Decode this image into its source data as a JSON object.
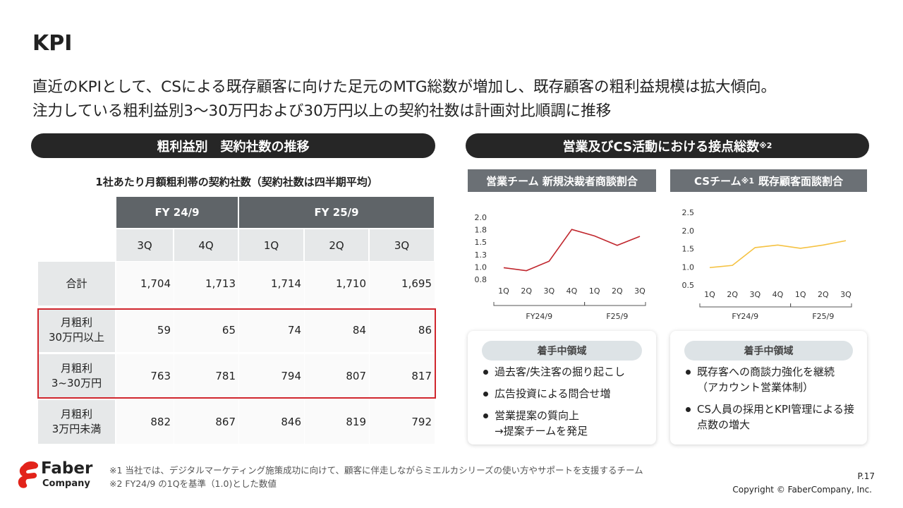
{
  "header": {
    "title": "KPI",
    "lead": [
      "直近のKPIとして、CSによる既存顧客に向けた足元のMTG総数が増加し、既存顧客の粗利益規模は拡大傾向。",
      "注力している粗利益別3〜30万円および30万円以上の契約社数は計画対比順調に推移"
    ]
  },
  "table_section": {
    "heading": "粗利益別　契約社数の推移",
    "caption": "1社あたり月額粗利帯の契約社数（契約社数は四半期平均）",
    "table": {
      "groups": [
        "FY 24/9",
        "FY 25/9"
      ],
      "columns": [
        "3Q",
        "4Q",
        "1Q",
        "2Q",
        "3Q"
      ],
      "rows": [
        {
          "label": [
            "合計"
          ],
          "cells": [
            "1,704",
            "1,713",
            "1,714",
            "1,710",
            "1,695"
          ],
          "highlight": false
        },
        {
          "label": [
            "月粗利",
            "30万円以上"
          ],
          "cells": [
            "59",
            "65",
            "74",
            "84",
            "86"
          ],
          "highlight": true
        },
        {
          "label": [
            "月粗利",
            "3~30万円"
          ],
          "cells": [
            "763",
            "781",
            "794",
            "807",
            "817"
          ],
          "highlight": true
        },
        {
          "label": [
            "月粗利",
            "3万円未満"
          ],
          "cells": [
            "882",
            "867",
            "846",
            "819",
            "792"
          ],
          "highlight": false
        }
      ]
    }
  },
  "activity_section": {
    "heading": "営業及びCS活動における接点総数",
    "heading_note": "※2"
  },
  "chart_data": [
    {
      "type": "line",
      "title": "営業チーム 新規決裁者商談割合",
      "categories": [
        "1Q",
        "2Q",
        "3Q",
        "4Q",
        "1Q",
        "2Q",
        "3Q"
      ],
      "groups": [
        "FY24/9",
        "F25/9"
      ],
      "values": [
        1.0,
        0.94,
        1.13,
        1.77,
        1.64,
        1.45,
        1.63
      ],
      "color": "#c0262d",
      "ylim": [
        0.75,
        2.0
      ],
      "yticks": [
        {
          "value": 0.75,
          "label": "0.8"
        },
        {
          "value": 1.0,
          "label": "1.0"
        },
        {
          "value": 1.25,
          "label": "1.3"
        },
        1.5,
        {
          "value": 1.75,
          "label": "1.8"
        },
        {
          "value": 2.0,
          "label": "2.0"
        }
      ]
    },
    {
      "type": "line",
      "title": "CSチーム",
      "title_note": "※1",
      "title_suffix": "既存顧客面談割合",
      "categories": [
        "1Q",
        "2Q",
        "3Q",
        "4Q",
        "1Q",
        "2Q",
        "3Q"
      ],
      "groups": [
        "FY24/9",
        "F25/9"
      ],
      "values": [
        1.0,
        1.06,
        1.55,
        1.62,
        1.53,
        1.62,
        1.74
      ],
      "color": "#f5c242",
      "ylim": [
        0.5,
        2.5
      ],
      "yticks": [
        0.5,
        {
          "value": 1.0,
          "label": "1.0"
        },
        1.5,
        {
          "value": 2.0,
          "label": "2.0"
        },
        2.5
      ]
    }
  ],
  "focus_boxes": [
    {
      "heading": "着手中領域",
      "items": [
        [
          "過去客/失注客の掘り起こし"
        ],
        [
          "広告投資による問合せ増"
        ],
        [
          "営業提案の質向上",
          "→提案チームを発足"
        ]
      ]
    },
    {
      "heading": "着手中領域",
      "items": [
        [
          "既存客への商談力強化を継続",
          "（アカウント営業体制）"
        ],
        [
          "CS人員の採用とKPI管理による接",
          "点数の増大"
        ]
      ]
    }
  ],
  "footer": {
    "logo": [
      "Faber",
      "Company"
    ],
    "notes": [
      "※1 当社では、デジタルマーケティング施策成功に向けて、顧客に伴走しながらミエルカシリーズの使い方やサポートを支援するチーム",
      "※2 FY24/9 の1Qを基準（1.0)とした数値"
    ],
    "page": "P.17",
    "copyright": "Copyright © FaberCompany, Inc."
  }
}
